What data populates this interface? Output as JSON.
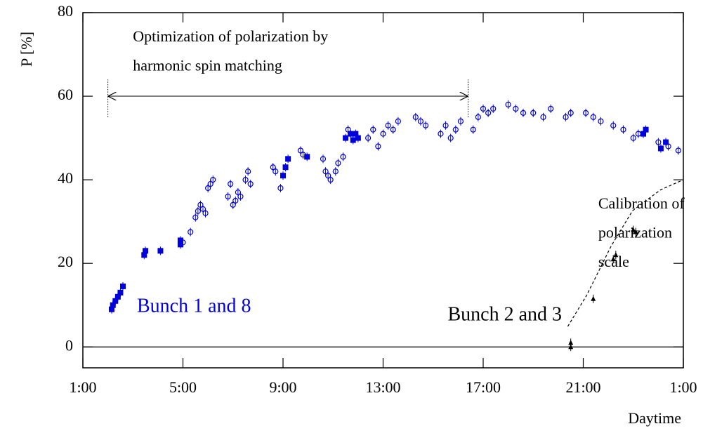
{
  "chart_data": {
    "type": "scatter",
    "y_label": "P [%]",
    "x_label": "Daytime",
    "xlim": [
      1,
      25
    ],
    "ylim": [
      -5,
      80
    ],
    "xticks": [
      {
        "value": 1,
        "label": "1:00"
      },
      {
        "value": 5,
        "label": "5:00"
      },
      {
        "value": 9,
        "label": "9:00"
      },
      {
        "value": 13,
        "label": "13:00"
      },
      {
        "value": 17,
        "label": "17:00"
      },
      {
        "value": 21,
        "label": "21:00"
      },
      {
        "value": 25,
        "label": "1:00"
      }
    ],
    "yticks": [
      0,
      20,
      40,
      60,
      80
    ],
    "hline": 0,
    "series": [
      {
        "name": "Bunch 1 and 8",
        "color": "#0000dd",
        "marker": "circle",
        "x": [
          5.0,
          5.3,
          5.5,
          5.6,
          5.7,
          5.8,
          5.9,
          6.0,
          6.1,
          6.2,
          6.8,
          6.9,
          7.0,
          7.1,
          7.2,
          7.3,
          7.5,
          7.6,
          7.7,
          8.6,
          8.7,
          8.9,
          9.7,
          9.8,
          10.6,
          10.7,
          10.8,
          10.9,
          11.1,
          11.2,
          11.4,
          11.6,
          12.4,
          12.6,
          12.8,
          13.0,
          13.2,
          13.4,
          13.6,
          14.3,
          14.5,
          14.7,
          15.3,
          15.5,
          15.7,
          15.9,
          16.1,
          16.6,
          16.8,
          17.0,
          17.2,
          17.4,
          18.0,
          18.3,
          18.6,
          19.0,
          19.4,
          19.7,
          20.3,
          20.5,
          21.1,
          21.4,
          21.7,
          22.2,
          22.6,
          23.0,
          23.2,
          24.0,
          24.4,
          24.8
        ],
        "values": [
          25,
          27.5,
          31,
          32.5,
          34,
          33,
          32,
          38,
          39,
          40,
          36,
          39,
          34,
          35,
          37,
          36,
          40,
          42,
          39,
          43,
          42,
          38,
          47,
          46,
          45,
          42,
          41,
          40,
          42,
          44,
          45.5,
          52,
          50,
          52,
          48,
          51,
          53,
          52,
          54,
          55,
          54,
          53,
          51,
          53,
          50,
          52,
          54,
          52,
          55,
          57,
          56,
          57,
          58,
          57,
          56,
          56,
          55,
          57,
          55,
          56,
          56,
          55,
          54,
          53,
          52,
          50,
          51,
          49,
          48,
          47
        ]
      },
      {
        "color": "#0000dd",
        "marker": "square",
        "x": [
          2.15,
          2.2,
          2.3,
          2.4,
          2.5,
          2.6,
          3.45,
          3.5,
          4.1,
          4.9,
          4.9,
          9.0,
          9.1,
          9.2,
          9.96,
          11.5,
          11.7,
          11.8,
          11.9,
          12.0,
          23.4,
          23.5,
          24.1,
          24.3
        ],
        "values": [
          9,
          10,
          11,
          12,
          13,
          14.5,
          22,
          23,
          23,
          24.5,
          25.5,
          41,
          43,
          45,
          45.5,
          50,
          51,
          49.5,
          51,
          50,
          51,
          52,
          47.5,
          49
        ]
      },
      {
        "name": "Bunch 2 and 3",
        "color": "#000000",
        "marker": "triangle",
        "x": [
          20.5,
          20.5,
          21.4,
          22.2,
          22.3,
          23.0,
          23.1
        ],
        "values": [
          0,
          1,
          11.5,
          21,
          22,
          28,
          27.5
        ]
      },
      {
        "color": "#000000",
        "marker": "dashed-line",
        "x": [
          20.38,
          21.14,
          22.12,
          22.97,
          24.09,
          25
        ],
        "values": [
          4.9,
          12.4,
          24.2,
          32.6,
          37.6,
          40
        ]
      }
    ],
    "annotations": [
      {
        "text": "Optimization of polarization by",
        "x": 3.0,
        "y": 74
      },
      {
        "text": "harmonic spin matching",
        "x": 3.0,
        "y": 67
      },
      {
        "text": "Calibration of",
        "x": 21.6,
        "y": 34
      },
      {
        "text": "polarization",
        "x": 21.6,
        "y": 27
      },
      {
        "text": "scale",
        "x": 21.6,
        "y": 20
      }
    ],
    "span": {
      "x": [
        2.0,
        16.4
      ],
      "y": 60,
      "ymin": 55,
      "ymax": 64
    }
  }
}
